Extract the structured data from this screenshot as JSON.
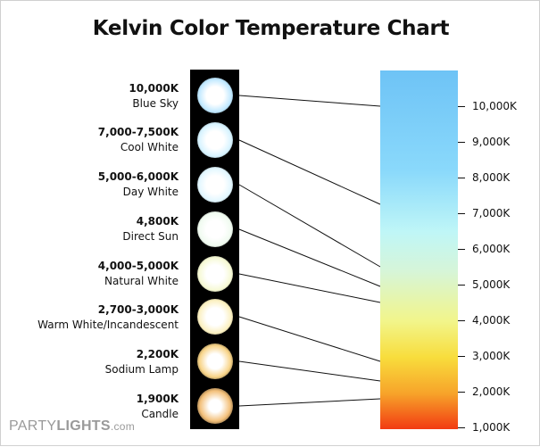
{
  "title": "Kelvin Color Temperature Chart",
  "sources": [
    {
      "kelvin": "10,000K",
      "name": "Blue Sky",
      "color": "#bfe8ff"
    },
    {
      "kelvin": "7,000-7,500K",
      "name": "Cool White",
      "color": "#d6f3ff"
    },
    {
      "kelvin": "5,000-6,000K",
      "name": "Day White",
      "color": "#e2f7ff"
    },
    {
      "kelvin": "4,800K",
      "name": "Direct Sun",
      "color": "#f0fbf0"
    },
    {
      "kelvin": "4,000-5,000K",
      "name": "Natural White",
      "color": "#f6f9d4"
    },
    {
      "kelvin": "2,700-3,000K",
      "name": "Warm White/Incandescent",
      "color": "#fbf0c0"
    },
    {
      "kelvin": "2,200K",
      "name": "Sodium Lamp",
      "color": "#f8d488"
    },
    {
      "kelvin": "1,900K",
      "name": "Candle",
      "color": "#f3c07a"
    }
  ],
  "scale": {
    "ticks": [
      "10,000K",
      "9,000K",
      "8,000K",
      "7,000K",
      "6,000K",
      "5,000K",
      "4,000K",
      "3,000K",
      "2,000K",
      "1,000K"
    ],
    "colors": [
      "#6ec3f6",
      "#8ad9fb",
      "#bff6f7",
      "#d6f5d8",
      "#f2f58a",
      "#f8dd3c",
      "#f7a42a",
      "#f23b12"
    ]
  },
  "connections": [
    {
      "source": "10,000K",
      "scale_value": "10,000K"
    },
    {
      "source": "7,000-7,500K",
      "scale_value": "7,250K"
    },
    {
      "source": "5,000-6,000K",
      "scale_value": "5,500K"
    },
    {
      "source": "4,800K",
      "scale_value": "4,800K"
    },
    {
      "source": "4,000-5,000K",
      "scale_value": "4,500K"
    },
    {
      "source": "2,700-3,000K",
      "scale_value": "2,850K"
    },
    {
      "source": "2,200K",
      "scale_value": "2,200K"
    },
    {
      "source": "1,900K",
      "scale_value": "1,900K"
    }
  ],
  "logo": {
    "part1": "PARTY",
    "part2": "LIGHTS",
    "part3": ".com"
  }
}
